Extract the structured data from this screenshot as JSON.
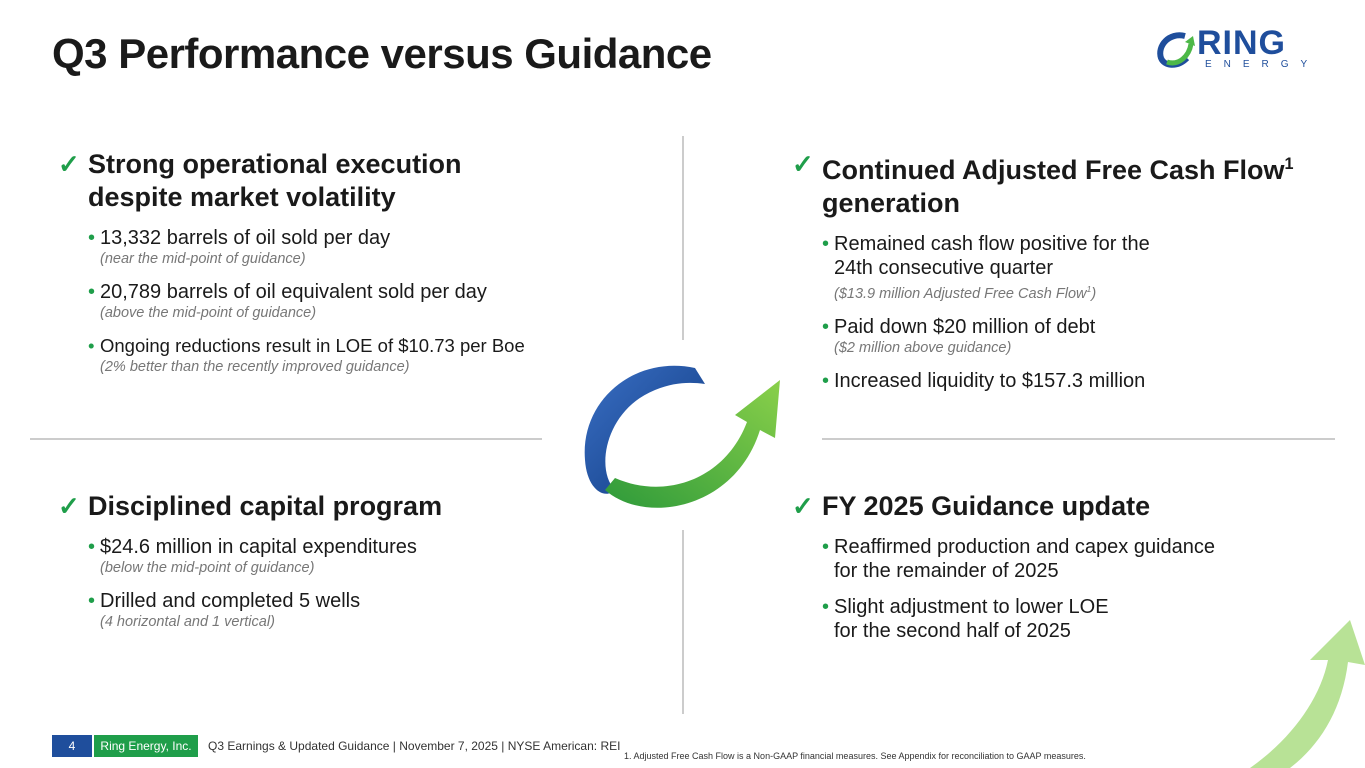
{
  "title": "Q3 Performance versus Guidance",
  "logo": {
    "text": "RING",
    "sub": "ENERGY"
  },
  "sections": [
    {
      "heading": [
        "Strong operational execution",
        "despite market volatility"
      ],
      "bullets": [
        {
          "text": "13,332 barrels of oil sold per day",
          "note": "(near the mid-point of guidance)"
        },
        {
          "text": "20,789 barrels of oil equivalent sold per day",
          "note": "(above the mid-point of guidance)"
        },
        {
          "text": "Ongoing reductions result in LOE of $10.73 per Boe",
          "note": "(2% better than the recently improved guidance)"
        }
      ]
    },
    {
      "heading": [
        "Continued Adjusted Free Cash Flow",
        "generation"
      ],
      "heading_sup": "1",
      "bullets": [
        {
          "text": "Remained cash flow positive for the",
          "text2": "24th consecutive quarter",
          "note": "($13.9 million Adjusted Free Cash Flow",
          "note_sup": "1",
          "note_end": ")"
        },
        {
          "text": "Paid down $20 million of debt",
          "note": "($2 million above guidance)"
        },
        {
          "text": "Increased liquidity to $157.3 million"
        }
      ]
    },
    {
      "heading": [
        "Disciplined capital program"
      ],
      "bullets": [
        {
          "text": "$24.6 million in capital expenditures",
          "note": "(below the mid-point of guidance)"
        },
        {
          "text": "Drilled and completed 5 wells",
          "note": "(4 horizontal and 1 vertical)"
        }
      ]
    },
    {
      "heading": [
        "FY 2025 Guidance update"
      ],
      "bullets": [
        {
          "text": "Reaffirmed production and capex guidance",
          "text2": "for the remainder of 2025"
        },
        {
          "text": "Slight adjustment to lower LOE",
          "text2": "for the second half of 2025"
        }
      ]
    }
  ],
  "footer": {
    "page": "4",
    "company": "Ring Energy, Inc.",
    "info": "Q3 Earnings & Updated Guidance | November 7, 2025 |  NYSE American: REI"
  },
  "footnote": "1.    Adjusted Free Cash Flow is a Non-GAAP financial measures. See Appendix for reconciliation to GAAP measures.",
  "colors": {
    "blue": "#1f4e9c",
    "green": "#1f9e4a"
  }
}
